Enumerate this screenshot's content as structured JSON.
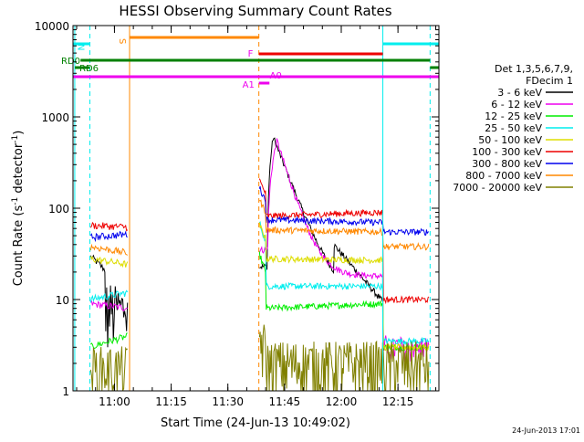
{
  "chart_data": {
    "type": "line",
    "title": "HESSI Observing Summary Count Rates",
    "xlabel": "Start Time (24-Jun-13 10:49:02)",
    "ylabel_main": "Count Rate (s",
    "ylabel_sup1": "-1",
    "ylabel_mid": " detector",
    "ylabel_sup2": "-1",
    "ylabel_end": ")",
    "footer": "24-Jun-2013 17:01",
    "x_range": [
      "10:49:02",
      "12:25:50"
    ],
    "x_ticks": [
      "11:00",
      "11:15",
      "11:30",
      "11:45",
      "12:00",
      "12:15"
    ],
    "y_scale": "log",
    "y_range": [
      1,
      10000
    ],
    "y_ticks": [
      "1",
      "10",
      "100",
      "1000",
      "10000"
    ],
    "legend_header": [
      "Det 1,3,5,6,7,9,",
      "FDecim 1"
    ],
    "series": [
      {
        "name": "3 - 6 keV",
        "color": "#000000"
      },
      {
        "name": "6 - 12 keV",
        "color": "#ee00ee"
      },
      {
        "name": "12 - 25 keV",
        "color": "#00ee00"
      },
      {
        "name": "25 - 50 keV",
        "color": "#00eeee"
      },
      {
        "name": "50 - 100 keV",
        "color": "#dddd00"
      },
      {
        "name": "100 - 300 keV",
        "color": "#ee0000"
      },
      {
        "name": "300 - 800 keV",
        "color": "#0000ee"
      },
      {
        "name": "800 - 7000 keV",
        "color": "#ff8800"
      },
      {
        "name": "7000 - 20000 keV",
        "color": "#808000"
      }
    ],
    "status_flags": [
      {
        "label": "S",
        "color": "#ff8800"
      },
      {
        "label": "N",
        "color": "#00eeee"
      },
      {
        "label": "F",
        "color": "#ee00ee"
      },
      {
        "label": "RD0",
        "color": "#008000"
      },
      {
        "label": "RD6",
        "color": "#008000"
      },
      {
        "label": "A1",
        "color": "#ee00ee"
      },
      {
        "label": "A0",
        "color": "#ee00ee"
      }
    ]
  }
}
